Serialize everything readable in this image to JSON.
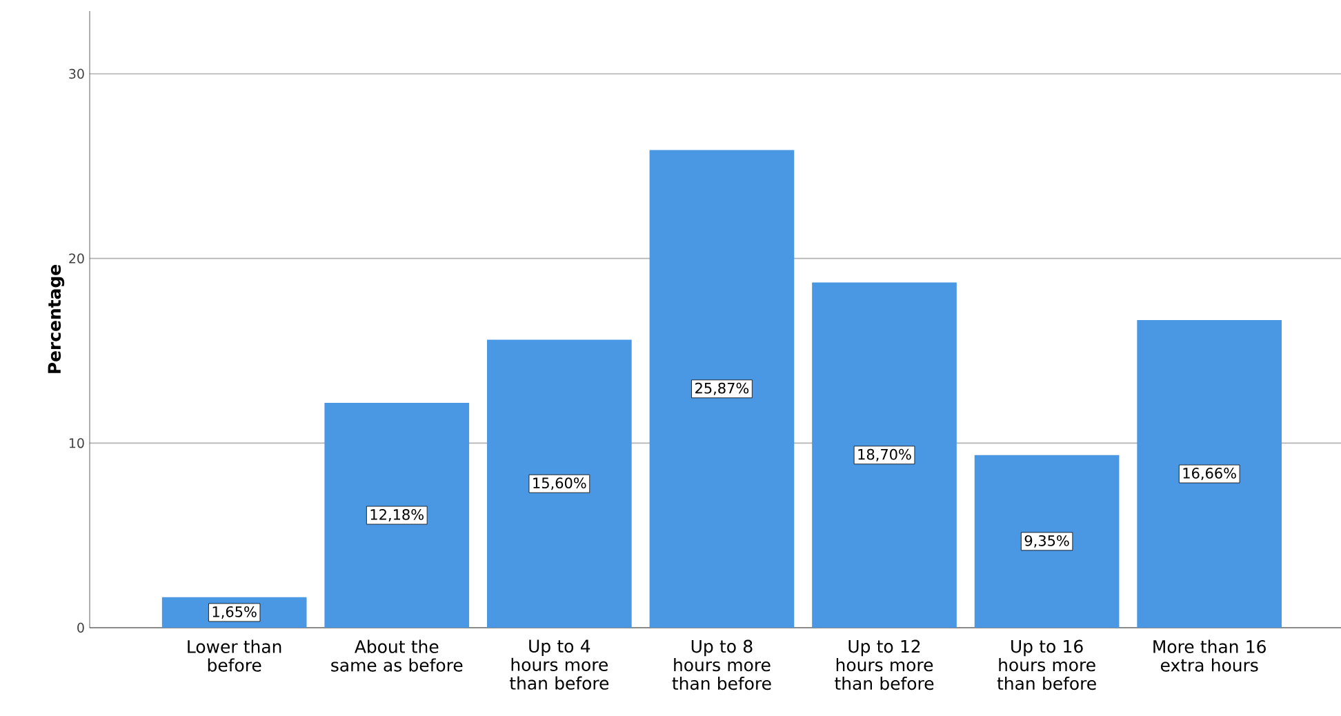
{
  "chart_data": {
    "type": "bar",
    "ylabel": "Percentage",
    "categories": [
      "Lower than before",
      "About the same as before",
      "Up to 4 hours more than before",
      "Up to 8 hours more than before",
      "Up to 12 hours more than before",
      "Up to 16 hours more than before",
      "More than 16 extra hours"
    ],
    "values": [
      1.65,
      12.18,
      15.6,
      25.87,
      18.7,
      9.35,
      16.66
    ],
    "value_labels": [
      "1,65%",
      "12,18%",
      "15,60%",
      "25,87%",
      "18,70%",
      "9,35%",
      "16,66%"
    ],
    "color": "#4a98e3",
    "ylim": [
      0,
      33.4
    ],
    "yticks": [
      0,
      10,
      20,
      30
    ],
    "grid": "y"
  }
}
